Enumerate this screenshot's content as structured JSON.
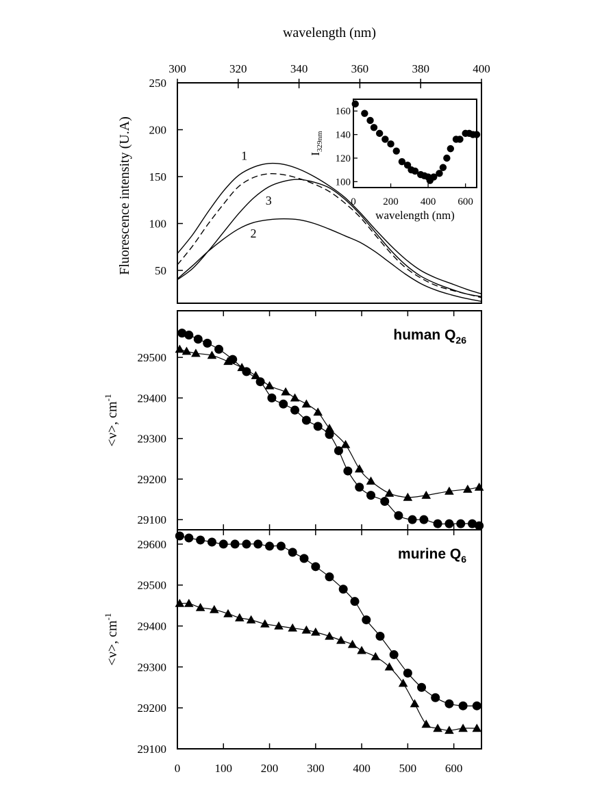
{
  "chart_data": [
    {
      "type": "line",
      "title": "",
      "xlabel": "wavelength (nm)",
      "ylabel": "Fluorescence intensity (U.A)",
      "xlim": [
        300,
        400
      ],
      "ylim": [
        15,
        250
      ],
      "x_ticks": [
        "300",
        "320",
        "340",
        "360",
        "380",
        "400"
      ],
      "y_ticks": [
        "50",
        "100",
        "150",
        "200",
        "250"
      ],
      "series": [
        {
          "name": "1",
          "style": "solid",
          "x": [
            300,
            305,
            310,
            315,
            320,
            325,
            330,
            335,
            340,
            345,
            350,
            355,
            360,
            365,
            370,
            375,
            380,
            385,
            390,
            395,
            400
          ],
          "y": [
            68,
            88,
            112,
            134,
            151,
            160,
            164,
            163,
            158,
            150,
            140,
            128,
            112,
            94,
            77,
            62,
            50,
            42,
            36,
            30,
            25
          ]
        },
        {
          "name": "dashed",
          "style": "dashed",
          "x": [
            300,
            305,
            310,
            315,
            320,
            325,
            330,
            335,
            340,
            345,
            350,
            355,
            360,
            365,
            370,
            375,
            380,
            385,
            390,
            395,
            400
          ],
          "y": [
            56,
            76,
            99,
            120,
            139,
            149,
            153,
            152,
            148,
            142,
            134,
            122,
            107,
            88,
            69,
            53,
            42,
            34,
            29,
            25,
            21
          ]
        },
        {
          "name": "3",
          "style": "solid",
          "x": [
            300,
            305,
            310,
            315,
            320,
            325,
            330,
            335,
            340,
            345,
            350,
            355,
            360,
            365,
            370,
            375,
            380,
            385,
            390,
            395,
            400
          ],
          "y": [
            40,
            52,
            70,
            90,
            110,
            127,
            139,
            145,
            147,
            144,
            138,
            126,
            110,
            91,
            72,
            56,
            44,
            36,
            30,
            25,
            22
          ]
        },
        {
          "name": "2",
          "style": "solid",
          "x": [
            300,
            305,
            310,
            315,
            320,
            325,
            330,
            335,
            340,
            345,
            350,
            355,
            360,
            365,
            370,
            375,
            380,
            385,
            390,
            395,
            400
          ],
          "y": [
            41,
            55,
            70,
            83,
            94,
            101,
            104,
            105,
            104,
            100,
            94,
            87,
            80,
            70,
            58,
            46,
            36,
            29,
            24,
            20,
            17
          ]
        }
      ],
      "curve_labels": [
        "1",
        "3",
        "2"
      ],
      "inset": {
        "type": "scatter",
        "xlabel": "wavelength (nm)",
        "ylabel_main": "I",
        "ylabel_sub": "329nm",
        "xlim": [
          0,
          660
        ],
        "ylim": [
          95,
          170
        ],
        "x_ticks": [
          "0",
          "200",
          "400",
          "600"
        ],
        "y_ticks": [
          "100",
          "120",
          "140",
          "160"
        ],
        "x": [
          10,
          60,
          90,
          110,
          140,
          170,
          200,
          230,
          260,
          290,
          310,
          330,
          360,
          380,
          400,
          410,
          430,
          460,
          480,
          500,
          520,
          550,
          570,
          600,
          620,
          640,
          660
        ],
        "y": [
          166,
          158,
          152,
          146,
          141,
          136,
          132,
          126,
          117,
          114,
          110,
          109,
          106,
          105,
          104,
          101,
          104,
          107,
          112,
          120,
          128,
          136,
          136,
          141,
          141,
          140,
          140
        ]
      }
    },
    {
      "type": "scatter",
      "label_main": "human Q",
      "label_sub": "26",
      "ylabel_main": "<ν>, cm",
      "ylabel_sup": "-1",
      "xlim": [
        0,
        660
      ],
      "ylim": [
        29075,
        29615
      ],
      "y_ticks": [
        "29100",
        "29200",
        "29300",
        "29400",
        "29500"
      ],
      "series": [
        {
          "name": "circles",
          "marker": "circle",
          "x": [
            10,
            25,
            45,
            65,
            90,
            120,
            150,
            180,
            205,
            230,
            255,
            280,
            305,
            330,
            350,
            370,
            395,
            420,
            450,
            480,
            510,
            535,
            565,
            590,
            615,
            640,
            655
          ],
          "y": [
            29560,
            29555,
            29545,
            29535,
            29520,
            29495,
            29465,
            29440,
            29400,
            29385,
            29370,
            29345,
            29330,
            29310,
            29270,
            29220,
            29180,
            29160,
            29145,
            29110,
            29100,
            29100,
            29090,
            29090,
            29090,
            29090,
            29085
          ]
        },
        {
          "name": "triangles",
          "marker": "triangle",
          "x": [
            5,
            20,
            40,
            75,
            110,
            140,
            170,
            200,
            235,
            255,
            280,
            305,
            330,
            365,
            395,
            420,
            460,
            500,
            540,
            590,
            630,
            655
          ],
          "y": [
            29520,
            29515,
            29510,
            29505,
            29490,
            29475,
            29455,
            29430,
            29415,
            29400,
            29385,
            29365,
            29325,
            29285,
            29225,
            29195,
            29165,
            29155,
            29160,
            29170,
            29175,
            29180
          ]
        }
      ]
    },
    {
      "type": "scatter",
      "label_main": "murine Q",
      "label_sub": "6",
      "ylabel_main": "<ν>, cm",
      "ylabel_sup": "-1",
      "xlim": [
        0,
        660
      ],
      "ylim": [
        29100,
        29635
      ],
      "xlabel": "",
      "x_ticks": [
        "0",
        "100",
        "200",
        "300",
        "400",
        "500",
        "600"
      ],
      "y_ticks": [
        "29100",
        "29200",
        "29300",
        "29400",
        "29500",
        "29600"
      ],
      "series": [
        {
          "name": "circles",
          "marker": "circle",
          "x": [
            5,
            25,
            50,
            75,
            100,
            125,
            150,
            175,
            200,
            225,
            250,
            275,
            300,
            330,
            360,
            385,
            410,
            440,
            470,
            500,
            530,
            560,
            590,
            620,
            650
          ],
          "y": [
            29620,
            29615,
            29610,
            29605,
            29600,
            29600,
            29600,
            29600,
            29595,
            29595,
            29580,
            29565,
            29545,
            29520,
            29490,
            29460,
            29415,
            29375,
            29330,
            29285,
            29250,
            29225,
            29210,
            29205,
            29205
          ]
        },
        {
          "name": "triangles",
          "marker": "triangle",
          "x": [
            5,
            25,
            50,
            80,
            110,
            135,
            160,
            190,
            220,
            250,
            280,
            300,
            330,
            355,
            380,
            400,
            430,
            460,
            490,
            515,
            540,
            565,
            590,
            620,
            650
          ],
          "y": [
            29455,
            29455,
            29445,
            29440,
            29430,
            29420,
            29415,
            29405,
            29400,
            29395,
            29390,
            29385,
            29375,
            29365,
            29355,
            29340,
            29325,
            29300,
            29260,
            29210,
            29160,
            29150,
            29145,
            29150,
            29150
          ]
        }
      ]
    }
  ]
}
